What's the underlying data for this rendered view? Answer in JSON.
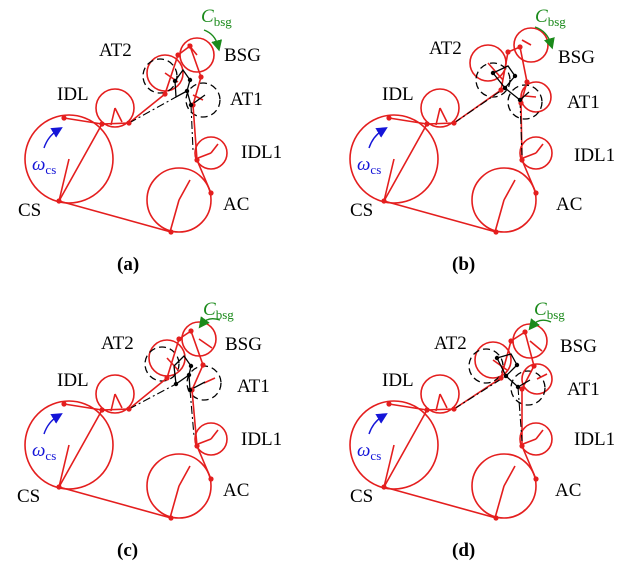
{
  "colors": {
    "belt": "#e41e1e",
    "tensioner": "#000000",
    "torque": "#1a8a1a",
    "speed": "#1515d8"
  },
  "labels": {
    "AT2": "AT2",
    "BSG": "BSG",
    "IDL": "IDL",
    "AT1": "AT1",
    "IDL1": "IDL1",
    "CS": "CS",
    "AC": "AC",
    "C_main": "C",
    "C_sub": "bsg",
    "omega_main": "ω",
    "omega_sub": "cs"
  },
  "panels": [
    {
      "caption": "(a)",
      "omega": true
    },
    {
      "caption": "(b)",
      "omega": true
    },
    {
      "caption": "(c)",
      "omega": true
    },
    {
      "caption": "(d)",
      "omega": true
    }
  ]
}
